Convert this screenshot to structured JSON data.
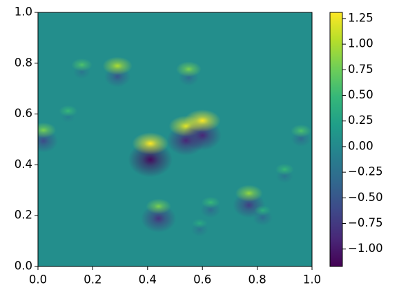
{
  "chart_data": {
    "type": "heatmap",
    "x": [
      0.29,
      0.16,
      0.55,
      0.11,
      0.02,
      0.41,
      0.54,
      0.6,
      0.44,
      0.77,
      0.63,
      0.9,
      0.96,
      0.59,
      0.82
    ],
    "y": [
      0.77,
      0.78,
      0.76,
      0.6,
      0.52,
      0.46,
      0.53,
      0.55,
      0.22,
      0.27,
      0.24,
      0.37,
      0.52,
      0.16,
      0.21
    ],
    "peak_values": [
      1.0,
      0.6,
      0.8,
      0.5,
      0.8,
      1.3,
      1.2,
      1.3,
      0.8,
      0.9,
      0.5,
      0.5,
      0.6,
      0.35,
      0.4
    ],
    "trough_values": [
      -0.5,
      -0.2,
      -0.3,
      -0.1,
      -0.6,
      -1.1,
      -0.9,
      -0.9,
      -0.8,
      -0.7,
      -0.3,
      -0.2,
      -0.3,
      -0.2,
      -0.3
    ],
    "base_value": 0.05,
    "xlim": [
      0,
      1
    ],
    "ylim": [
      0,
      1
    ],
    "xticks": [
      {
        "value": 0,
        "label": "0.0"
      },
      {
        "value": 0.2,
        "label": "0.2"
      },
      {
        "value": 0.4,
        "label": "0.4"
      },
      {
        "value": 0.6,
        "label": "0.6"
      },
      {
        "value": 0.8,
        "label": "0.8"
      },
      {
        "value": 1,
        "label": "1.0"
      }
    ],
    "yticks": [
      {
        "value": 0,
        "label": "0.0"
      },
      {
        "value": 0.2,
        "label": "0.2"
      },
      {
        "value": 0.4,
        "label": "0.4"
      },
      {
        "value": 0.6,
        "label": "0.6"
      },
      {
        "value": 0.8,
        "label": "0.8"
      },
      {
        "value": 1,
        "label": "1.0"
      }
    ],
    "clim": [
      -1.17,
      1.31
    ],
    "cticks": [
      {
        "value": -1,
        "label": "−1.00"
      },
      {
        "value": -0.75,
        "label": "−0.75"
      },
      {
        "value": -0.5,
        "label": "−0.50"
      },
      {
        "value": -0.25,
        "label": "−0.25"
      },
      {
        "value": 0,
        "label": "0.00"
      },
      {
        "value": 0.25,
        "label": "0.25"
      },
      {
        "value": 0.5,
        "label": "0.50"
      },
      {
        "value": 0.75,
        "label": "0.75"
      },
      {
        "value": 1,
        "label": "1.00"
      },
      {
        "value": 1.25,
        "label": "1.25"
      }
    ],
    "colormap": "viridis"
  }
}
